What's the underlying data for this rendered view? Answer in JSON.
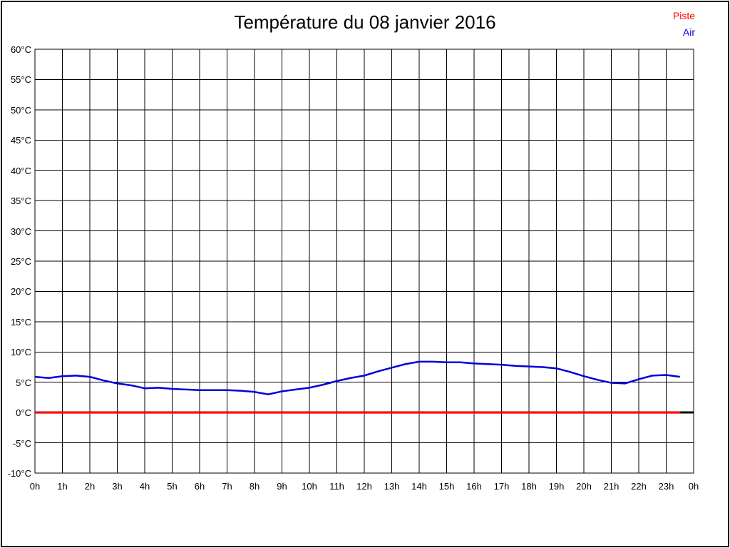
{
  "page": {
    "background": "#ffffff",
    "border_color": "#000000"
  },
  "title": "Température du 08 janvier 2016",
  "legend": {
    "items": [
      {
        "label": "Piste",
        "color": "#ff0000"
      },
      {
        "label": "Air",
        "color": "#0000ee"
      }
    ]
  },
  "chart_data": {
    "type": "line",
    "title": "Température du 08 janvier 2016",
    "xlabel": "",
    "ylabel": "",
    "x_unit": "h",
    "y_unit": "°C",
    "xlim": [
      0,
      24
    ],
    "ylim": [
      -10,
      60
    ],
    "grid": true,
    "grid_color": "#000000",
    "legend_position": "top-right",
    "xtick_values": [
      0,
      1,
      2,
      3,
      4,
      5,
      6,
      7,
      8,
      9,
      10,
      11,
      12,
      13,
      14,
      15,
      16,
      17,
      18,
      19,
      20,
      21,
      22,
      23,
      24
    ],
    "xtick_labels": [
      "0h",
      "1h",
      "2h",
      "3h",
      "4h",
      "5h",
      "6h",
      "7h",
      "8h",
      "9h",
      "10h",
      "11h",
      "12h",
      "13h",
      "14h",
      "15h",
      "16h",
      "17h",
      "18h",
      "19h",
      "20h",
      "21h",
      "22h",
      "23h",
      "0h"
    ],
    "ytick_values": [
      60,
      55,
      50,
      45,
      40,
      35,
      30,
      25,
      20,
      15,
      10,
      5,
      0,
      -5,
      -10
    ],
    "ytick_labels": [
      "60°C",
      "55°C",
      "50°C",
      "45°C",
      "40°C",
      "35°C",
      "30°C",
      "25°C",
      "20°C",
      "15°C",
      "10°C",
      "5°C",
      "0°C",
      "-5°C",
      "-10°C"
    ],
    "baseline": {
      "y": 0,
      "color": "#000000",
      "width": 3,
      "x_range": [
        0,
        24
      ]
    },
    "series": [
      {
        "name": "Piste",
        "color": "#ff0000",
        "width": 3,
        "points": [
          [
            0,
            0.0
          ],
          [
            23.5,
            0.0
          ]
        ]
      },
      {
        "name": "Air",
        "color": "#0000dd",
        "width": 2.5,
        "points": [
          [
            0,
            5.9
          ],
          [
            0.5,
            5.7
          ],
          [
            1,
            6.0
          ],
          [
            1.5,
            6.1
          ],
          [
            2,
            5.9
          ],
          [
            2.5,
            5.3
          ],
          [
            3,
            4.8
          ],
          [
            3.5,
            4.5
          ],
          [
            4,
            4.0
          ],
          [
            4.5,
            4.1
          ],
          [
            5,
            3.9
          ],
          [
            5.5,
            3.8
          ],
          [
            6,
            3.7
          ],
          [
            6.5,
            3.7
          ],
          [
            7,
            3.7
          ],
          [
            7.5,
            3.6
          ],
          [
            8,
            3.4
          ],
          [
            8.5,
            3.0
          ],
          [
            9,
            3.5
          ],
          [
            9.5,
            3.8
          ],
          [
            10,
            4.1
          ],
          [
            10.5,
            4.6
          ],
          [
            11,
            5.2
          ],
          [
            11.5,
            5.7
          ],
          [
            12,
            6.1
          ],
          [
            12.5,
            6.8
          ],
          [
            13,
            7.4
          ],
          [
            13.5,
            8.0
          ],
          [
            14,
            8.4
          ],
          [
            14.5,
            8.4
          ],
          [
            15,
            8.3
          ],
          [
            15.5,
            8.3
          ],
          [
            16,
            8.1
          ],
          [
            16.5,
            8.0
          ],
          [
            17,
            7.9
          ],
          [
            17.5,
            7.7
          ],
          [
            18,
            7.6
          ],
          [
            18.5,
            7.5
          ],
          [
            19,
            7.3
          ],
          [
            19.5,
            6.7
          ],
          [
            20,
            6.0
          ],
          [
            20.5,
            5.4
          ],
          [
            21,
            4.9
          ],
          [
            21.5,
            4.8
          ],
          [
            22,
            5.5
          ],
          [
            22.5,
            6.1
          ],
          [
            23,
            6.2
          ],
          [
            23.5,
            5.9
          ]
        ]
      }
    ]
  }
}
